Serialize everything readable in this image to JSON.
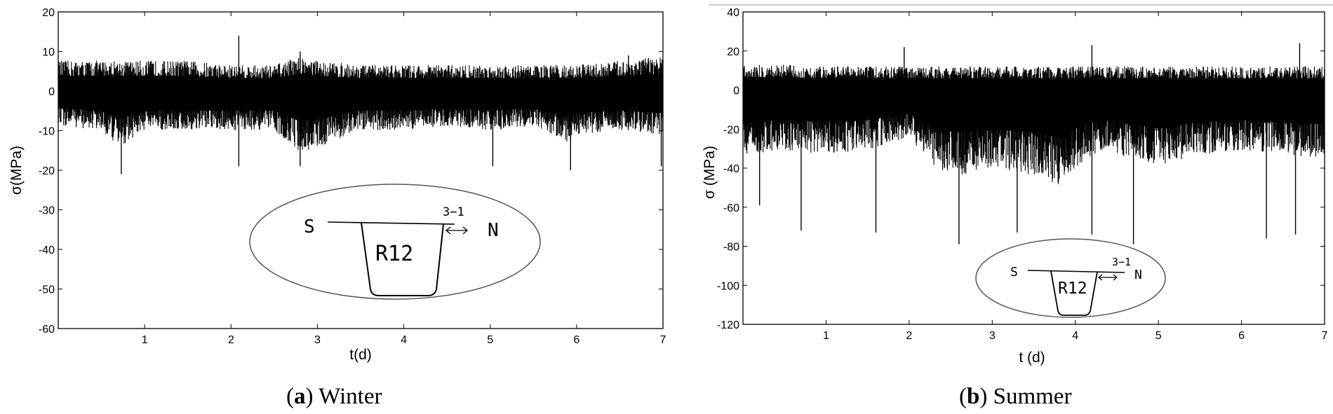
{
  "chart_data": [
    {
      "type": "line",
      "caption": {
        "letter": "a",
        "text": "Winter"
      },
      "xlabel": "t(d)",
      "ylabel": "σ(MPa)",
      "xlim": [
        0,
        7
      ],
      "ylim": [
        -60,
        20
      ],
      "xticks": [
        1,
        2,
        3,
        4,
        5,
        6,
        7
      ],
      "yticks": [
        20,
        10,
        0,
        -10,
        -20,
        -30,
        -40,
        -50,
        -60
      ],
      "grid": false,
      "series": [
        {
          "color": "#000000",
          "band_upper": [
            [
              0,
              7
            ],
            [
              0.5,
              7
            ],
            [
              1,
              7
            ],
            [
              1.5,
              7
            ],
            [
              2,
              6
            ],
            [
              2.5,
              6
            ],
            [
              2.8,
              8
            ],
            [
              3,
              7
            ],
            [
              3.5,
              6
            ],
            [
              4,
              6
            ],
            [
              4.5,
              6
            ],
            [
              5,
              6
            ],
            [
              5.5,
              6
            ],
            [
              6,
              6
            ],
            [
              6.5,
              7
            ],
            [
              7,
              8
            ]
          ],
          "band_lower": [
            [
              0,
              -8
            ],
            [
              0.5,
              -9
            ],
            [
              0.7,
              -13
            ],
            [
              1,
              -9
            ],
            [
              1.5,
              -9
            ],
            [
              2,
              -9
            ],
            [
              2.5,
              -9
            ],
            [
              2.8,
              -14
            ],
            [
              3,
              -13
            ],
            [
              3.5,
              -9
            ],
            [
              4,
              -9
            ],
            [
              4.5,
              -8
            ],
            [
              5,
              -9
            ],
            [
              5.5,
              -8
            ],
            [
              5.9,
              -12
            ],
            [
              6,
              -10
            ],
            [
              6.5,
              -9
            ],
            [
              7,
              -10
            ]
          ],
          "peaks_max": [
            [
              2.09,
              14
            ],
            [
              2.8,
              10
            ],
            [
              6.6,
              9
            ]
          ],
          "peaks_min": [
            [
              0.73,
              -21
            ],
            [
              2.09,
              -19
            ],
            [
              2.8,
              -19
            ],
            [
              5.03,
              -19
            ],
            [
              5.93,
              -20
            ],
            [
              6.98,
              -19
            ]
          ]
        }
      ],
      "inset": {
        "left_label": "S",
        "right_label": "N",
        "box_label": "R12",
        "gauge_label": "3−1"
      }
    },
    {
      "type": "line",
      "caption": {
        "letter": "b",
        "text": "Summer"
      },
      "xlabel": "t (d)",
      "ylabel": "σ (MPa)",
      "xlim": [
        0,
        7
      ],
      "ylim": [
        -120,
        40
      ],
      "xticks": [
        1,
        2,
        3,
        4,
        5,
        6,
        7
      ],
      "yticks": [
        40,
        20,
        0,
        -20,
        -40,
        -60,
        -80,
        -100,
        -120
      ],
      "grid": false,
      "series": [
        {
          "color": "#000000",
          "band_upper": [
            [
              0,
              12
            ],
            [
              0.5,
              12
            ],
            [
              1,
              11
            ],
            [
              1.5,
              11
            ],
            [
              2,
              11
            ],
            [
              2.5,
              11
            ],
            [
              3,
              11
            ],
            [
              3.5,
              11
            ],
            [
              4,
              11
            ],
            [
              4.5,
              11
            ],
            [
              5,
              11
            ],
            [
              5.5,
              11
            ],
            [
              6,
              11
            ],
            [
              6.5,
              11
            ],
            [
              7,
              11
            ]
          ],
          "band_lower": [
            [
              0,
              -30
            ],
            [
              0.5,
              -28
            ],
            [
              1,
              -30
            ],
            [
              1.5,
              -28
            ],
            [
              2,
              -22
            ],
            [
              2.3,
              -36
            ],
            [
              2.6,
              -40
            ],
            [
              3,
              -36
            ],
            [
              3.5,
              -40
            ],
            [
              3.8,
              -44
            ],
            [
              4,
              -36
            ],
            [
              4.3,
              -28
            ],
            [
              4.7,
              -32
            ],
            [
              5,
              -36
            ],
            [
              5.5,
              -30
            ],
            [
              6,
              -28
            ],
            [
              6.5,
              -30
            ],
            [
              7,
              -32
            ]
          ],
          "peaks_max": [
            [
              1.94,
              22
            ],
            [
              4.2,
              23
            ],
            [
              6.7,
              24
            ]
          ],
          "peaks_min": [
            [
              0.2,
              -59
            ],
            [
              0.7,
              -72
            ],
            [
              1.6,
              -73
            ],
            [
              2.6,
              -79
            ],
            [
              3.3,
              -73
            ],
            [
              4.2,
              -74
            ],
            [
              4.7,
              -79
            ],
            [
              6.3,
              -76
            ],
            [
              6.65,
              -74
            ]
          ]
        }
      ],
      "inset": {
        "left_label": "S",
        "right_label": "N",
        "box_label": "R12",
        "gauge_label": "3−1"
      }
    }
  ]
}
